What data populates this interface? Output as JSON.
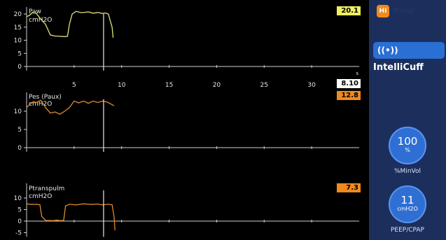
{
  "waveforms": [
    {
      "title": "Paw",
      "unit": "cmH2O",
      "value": "20.1",
      "value_color": "#f0f060",
      "trace_color": "#e6e07a",
      "y_ticks": [
        "20",
        "15",
        "10",
        "5",
        "0"
      ],
      "points": [
        [
          0,
          19
        ],
        [
          0.3,
          19.5
        ],
        [
          0.6,
          20.5
        ],
        [
          1,
          20.3
        ],
        [
          1.5,
          18
        ],
        [
          2,
          16
        ],
        [
          2.5,
          12
        ],
        [
          3,
          11.6
        ],
        [
          3.5,
          11.5
        ],
        [
          4,
          11.4
        ],
        [
          4.3,
          11.5
        ],
        [
          4.5,
          16
        ],
        [
          4.8,
          20
        ],
        [
          5.2,
          21
        ],
        [
          5.8,
          20.5
        ],
        [
          6.5,
          20.8
        ],
        [
          7,
          20.3
        ],
        [
          7.5,
          20.6
        ],
        [
          8,
          20.2
        ],
        [
          8.3,
          20.4
        ],
        [
          8.6,
          20
        ],
        [
          9,
          15
        ],
        [
          9.1,
          11
        ]
      ]
    },
    {
      "title": "Pes (Paux)",
      "unit": "cmH2O",
      "value": "12.8",
      "value_color": "#f08a1c",
      "trace_color": "#e08a2a",
      "y_ticks": [
        "10",
        "5",
        "0"
      ],
      "points": [
        [
          0,
          11
        ],
        [
          0.3,
          11.8
        ],
        [
          0.7,
          12.6
        ],
        [
          1,
          12.4
        ],
        [
          1.5,
          13
        ],
        [
          2,
          11
        ],
        [
          2.5,
          9.5
        ],
        [
          3,
          9.8
        ],
        [
          3.5,
          9.2
        ],
        [
          4,
          10
        ],
        [
          4.5,
          11
        ],
        [
          5,
          12.8
        ],
        [
          5.5,
          12.3
        ],
        [
          6,
          12.8
        ],
        [
          6.5,
          12.2
        ],
        [
          7,
          12.8
        ],
        [
          7.5,
          12.4
        ],
        [
          8,
          12.8
        ],
        [
          8.5,
          12.5
        ],
        [
          9,
          11.8
        ],
        [
          9.2,
          11.5
        ]
      ]
    },
    {
      "title": "Ptranspulm",
      "unit": "cmH2O",
      "value": "7.3",
      "value_color": "#f08a1c",
      "trace_color": "#e08a2a",
      "y_ticks": [
        "10",
        "5",
        "0",
        "-5"
      ],
      "points": [
        [
          0,
          7.5
        ],
        [
          0.5,
          7.2
        ],
        [
          1,
          7.3
        ],
        [
          1.4,
          7.1
        ],
        [
          1.6,
          2
        ],
        [
          2,
          0.3
        ],
        [
          2.8,
          0.2
        ],
        [
          3.2,
          0.4
        ],
        [
          3.5,
          0.2
        ],
        [
          3.9,
          0.3
        ],
        [
          4.1,
          6.5
        ],
        [
          4.5,
          7.3
        ],
        [
          5.2,
          7
        ],
        [
          6,
          7.5
        ],
        [
          6.8,
          7.2
        ],
        [
          7.5,
          7.4
        ],
        [
          8,
          7
        ],
        [
          8.5,
          7.3
        ],
        [
          9,
          7.1
        ],
        [
          9.2,
          2
        ],
        [
          9.3,
          -4
        ]
      ]
    }
  ],
  "time_axis": {
    "ticks": [
      "5",
      "10",
      "15",
      "20",
      "25",
      "30"
    ],
    "unit": "s",
    "cursor_value": "8.10",
    "cursor_time": 8.1
  },
  "sidebar": {
    "top_button_label": "HI",
    "top_text": "Trend",
    "intellicuff_label": "IntelliCuff",
    "controls": [
      {
        "value": "100",
        "unit": "%",
        "label": "%MinVol"
      },
      {
        "value": "11",
        "unit": "cmH2O",
        "label": "PEEP/CPAP"
      }
    ]
  },
  "colors": {
    "background": "#000000",
    "sidebar": "#1c2f5c",
    "accent": "#2f6fd4",
    "orange": "#f08a1c"
  }
}
